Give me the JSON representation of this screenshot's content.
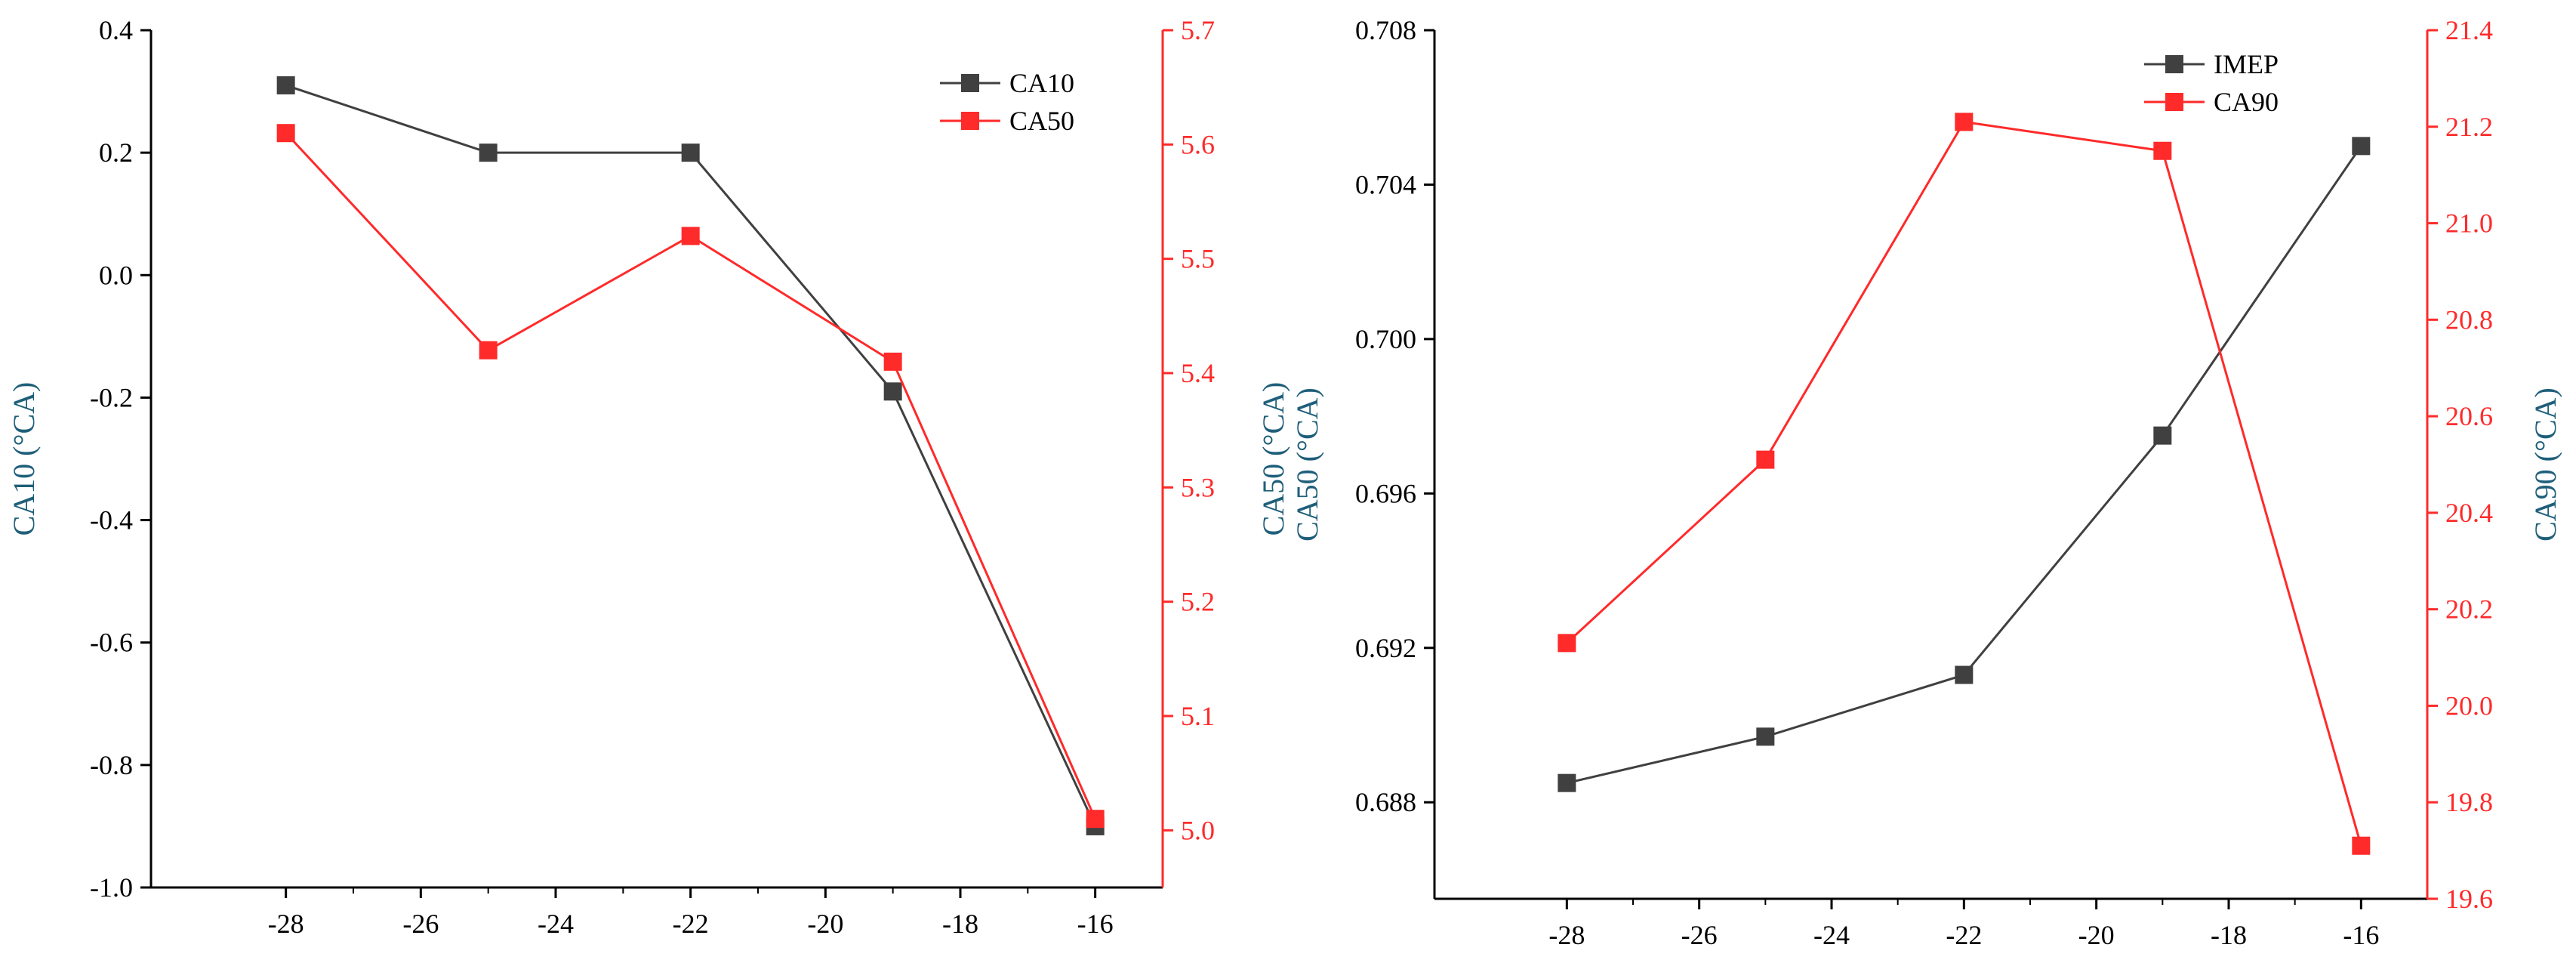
{
  "colors": {
    "primary": "#404040",
    "secondary": "#ff2a2a",
    "axis_left": "#000000",
    "axis_title": "#1f5f7a"
  },
  "chart_data": [
    {
      "type": "line",
      "x": [
        -28,
        -25,
        -22,
        -19,
        -16
      ],
      "xlim": [
        -30,
        -15
      ],
      "xticks": [
        -28,
        -26,
        -24,
        -22,
        -20,
        -18,
        -16
      ],
      "series": [
        {
          "name": "CA10",
          "axis": "left",
          "color": "#404040",
          "values": [
            0.31,
            0.2,
            0.2,
            -0.19,
            -0.9
          ]
        },
        {
          "name": "CA50",
          "axis": "right",
          "color": "#ff2a2a",
          "values": [
            5.61,
            5.42,
            5.52,
            5.41,
            5.01
          ]
        }
      ],
      "ylabel": "CA10 (°CA)",
      "ylim": [
        -1.0,
        0.4
      ],
      "yticks": [
        "-1.0",
        "-0.8",
        "-0.6",
        "-0.4",
        "-0.2",
        "0.0",
        "0.2",
        "0.4"
      ],
      "y2label": "CA50 (°CA)",
      "y2lim": [
        4.95,
        5.7
      ],
      "y2ticks": [
        "5.0",
        "5.1",
        "5.2",
        "5.3",
        "5.4",
        "5.5",
        "5.6",
        "5.7"
      ],
      "legend_position": "top-right"
    },
    {
      "type": "line",
      "x": [
        -28,
        -25,
        -22,
        -19,
        -16
      ],
      "xlim": [
        -30,
        -15
      ],
      "xticks": [
        -28,
        -26,
        -24,
        -22,
        -20,
        -18,
        -16
      ],
      "series": [
        {
          "name": "IMEP",
          "axis": "left",
          "color": "#404040",
          "values": [
            0.6885,
            0.6897,
            0.6913,
            0.6975,
            0.705
          ]
        },
        {
          "name": "CA90",
          "axis": "right",
          "color": "#ff2a2a",
          "values": [
            20.13,
            20.51,
            21.21,
            21.15,
            19.71
          ]
        }
      ],
      "ylabel": "CA50 (°CA)",
      "ylim": [
        0.6855,
        0.708
      ],
      "yticks": [
        "0.688",
        "0.692",
        "0.696",
        "0.700",
        "0.704",
        "0.708"
      ],
      "y2label": "CA90 (°CA)",
      "y2lim": [
        19.6,
        21.4
      ],
      "y2ticks": [
        "19.6",
        "19.8",
        "20.0",
        "20.2",
        "20.4",
        "20.6",
        "20.8",
        "21.0",
        "21.2",
        "21.4"
      ],
      "legend_position": "top-right"
    }
  ]
}
